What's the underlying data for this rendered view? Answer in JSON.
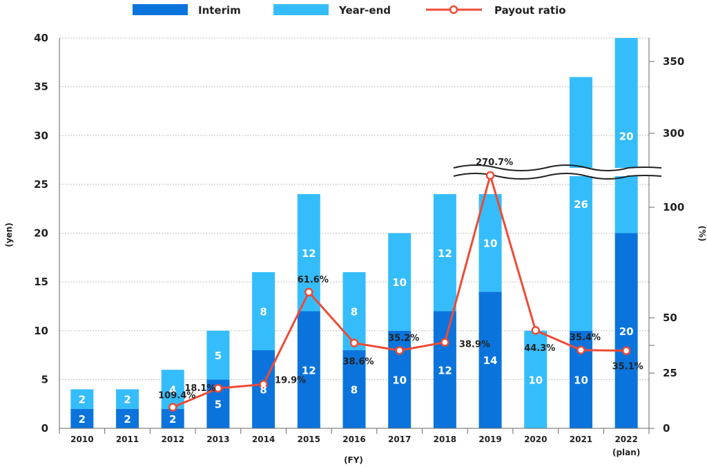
{
  "chart_data": {
    "type": "bar",
    "stacked": true,
    "categories": [
      "2010",
      "2011",
      "2012",
      "2013",
      "2014",
      "2015",
      "2016",
      "2017",
      "2018",
      "2019",
      "2020",
      "2021",
      "2022"
    ],
    "category_sublabels": [
      "",
      "",
      "",
      "",
      "",
      "",
      "",
      "",
      "",
      "",
      "",
      "",
      "(plan)"
    ],
    "series": [
      {
        "name": "Interim",
        "type": "bar",
        "color": "#0b74dc",
        "values": [
          2,
          2,
          2,
          5,
          8,
          12,
          8,
          10,
          12,
          14,
          0,
          10,
          20
        ]
      },
      {
        "name": "Year-end",
        "type": "bar",
        "color": "#35bdfb",
        "values": [
          2,
          2,
          4,
          5,
          8,
          12,
          8,
          10,
          12,
          10,
          10,
          26,
          20
        ]
      },
      {
        "name": "Payout ratio",
        "type": "line",
        "axis": "right",
        "color": "#ee4a34",
        "values": [
          null,
          null,
          109.4,
          18.1,
          19.9,
          61.6,
          38.6,
          35.2,
          38.9,
          270.7,
          44.3,
          35.4,
          35.1
        ],
        "labels": [
          "",
          "",
          "109.4%",
          "18.1%",
          "19.9%",
          "61.6%",
          "38.6%",
          "35.2%",
          "38.9%",
          "270.7%",
          "44.3%",
          "35.4%",
          "35.1%"
        ]
      }
    ],
    "bar_value_labels": {
      "interim": [
        "2",
        "2",
        "2",
        "5",
        "8",
        "12",
        "8",
        "10",
        "12",
        "14",
        "",
        "10",
        "20"
      ],
      "year_end": [
        "2",
        "2",
        "4",
        "5",
        "8",
        "12",
        "8",
        "10",
        "12",
        "10",
        "10",
        "26",
        "20"
      ]
    },
    "xlabel": "(FY)",
    "ylabel": "(yen)",
    "y2label": "(%)",
    "ylim": [
      0,
      40
    ],
    "yticks": [
      0,
      5,
      10,
      15,
      20,
      25,
      30,
      35,
      40
    ],
    "y2ticks": [
      "0",
      "25",
      "50",
      "100",
      "300",
      "350"
    ],
    "y2_axis_break": "between 100 and 300",
    "legend": {
      "position": "top-center",
      "entries": [
        "Interim",
        "Year-end",
        "Payout ratio"
      ]
    },
    "grid": true
  }
}
